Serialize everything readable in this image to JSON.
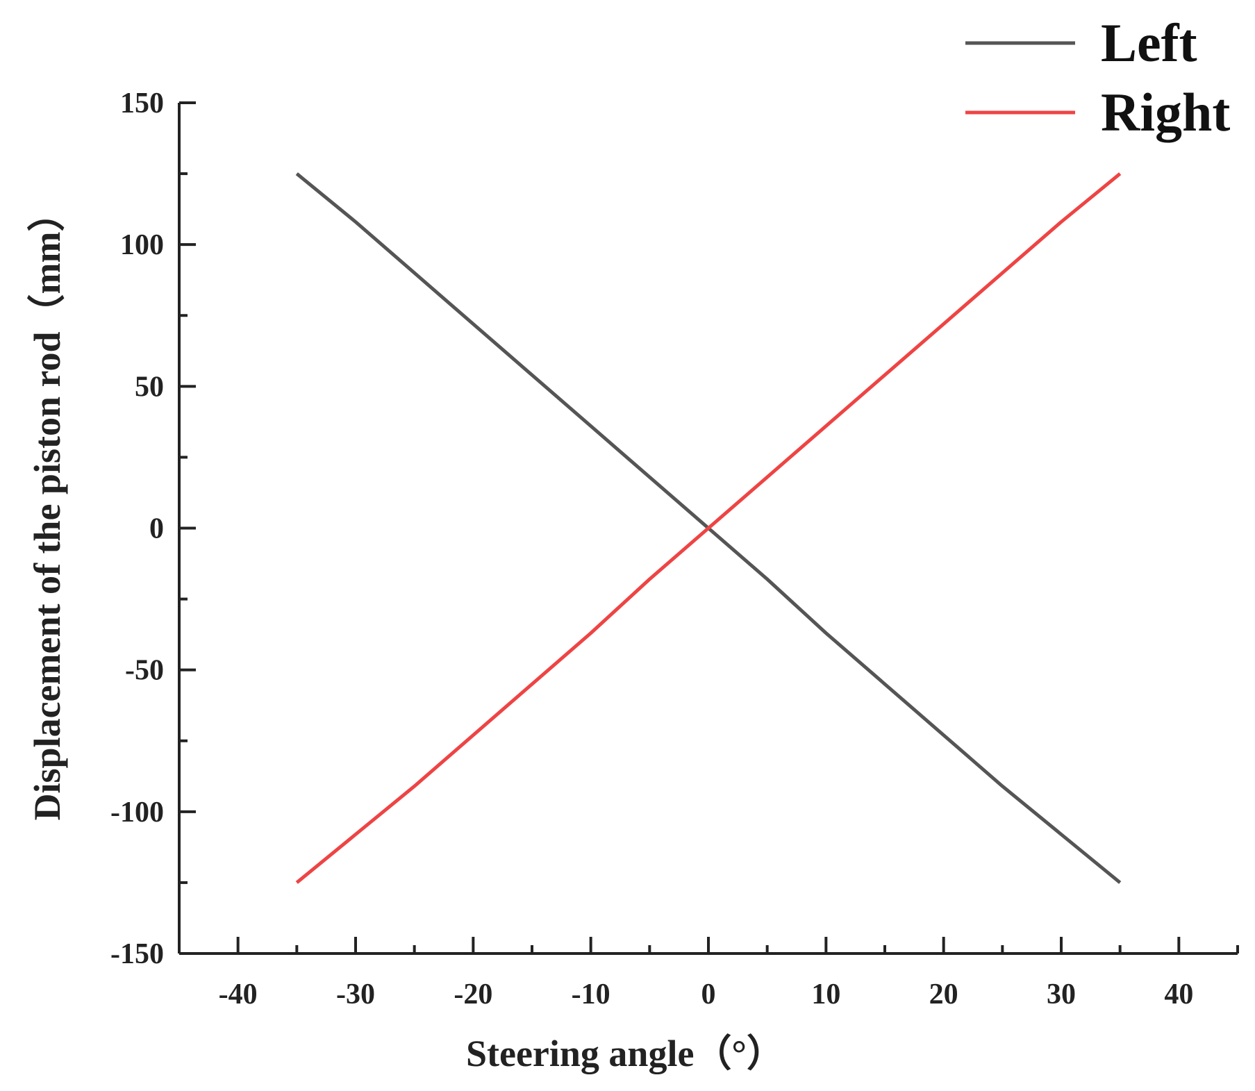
{
  "chart_data": {
    "type": "line",
    "title": "",
    "xlabel": "Steering angle（°）",
    "ylabel": "Displacement of the piston rod（mm）",
    "xlim": [
      -45,
      45
    ],
    "ylim": [
      -150,
      150
    ],
    "x_ticks": [
      -40,
      -30,
      -20,
      -10,
      0,
      10,
      20,
      30,
      40
    ],
    "y_ticks": [
      -150,
      -100,
      -50,
      0,
      50,
      100,
      150
    ],
    "x_minor_step": 5,
    "y_minor_step": 25,
    "grid": false,
    "legend": {
      "position": "top-right"
    },
    "series": [
      {
        "name": "Left",
        "color": "#555555",
        "x": [
          -35,
          -30,
          -25,
          -20,
          -15,
          -10,
          -5,
          0,
          5,
          10,
          15,
          20,
          25,
          30,
          35
        ],
        "y": [
          125,
          108,
          90,
          72,
          54,
          36,
          18,
          0,
          -18,
          -37,
          -55,
          -73,
          -91,
          -108,
          -125
        ]
      },
      {
        "name": "Right",
        "color": "#ee4444",
        "x": [
          -35,
          -30,
          -25,
          -20,
          -15,
          -10,
          -5,
          0,
          5,
          10,
          15,
          20,
          25,
          30,
          35
        ],
        "y": [
          -125,
          -108,
          -91,
          -73,
          -55,
          -37,
          -18,
          0,
          18,
          36,
          54,
          72,
          90,
          108,
          125
        ]
      }
    ]
  }
}
